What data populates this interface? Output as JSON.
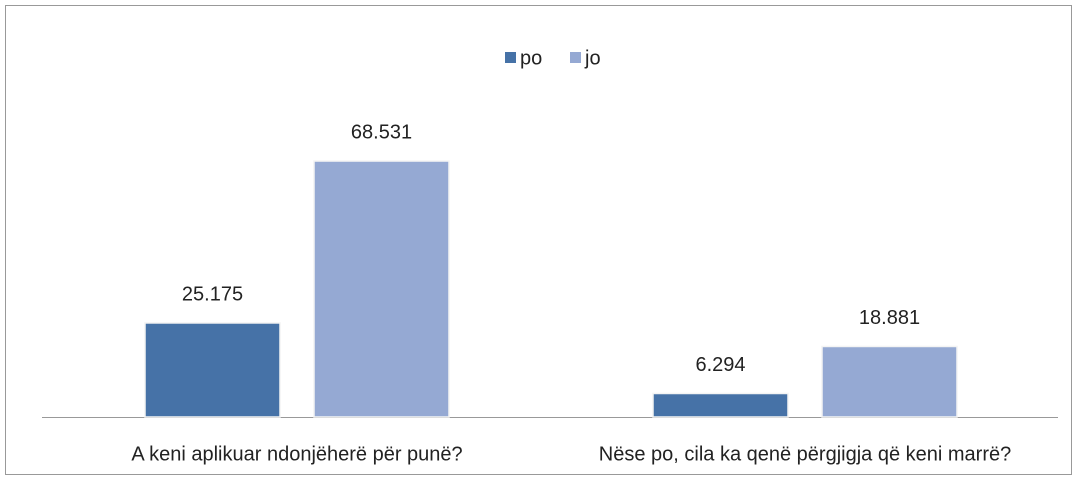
{
  "chart_data": {
    "type": "bar",
    "categories": [
      "A keni aplikuar ndonjëherë për punë?",
      "Nëse po, cila ka qenë përgjigja që keni marrë?"
    ],
    "series": [
      {
        "name": "po",
        "color": "#4672a7",
        "values": [
          25.175,
          6.294
        ]
      },
      {
        "name": "jo",
        "color": "#95a9d3",
        "values": [
          68.531,
          18.881
        ]
      }
    ],
    "legend": "top"
  }
}
